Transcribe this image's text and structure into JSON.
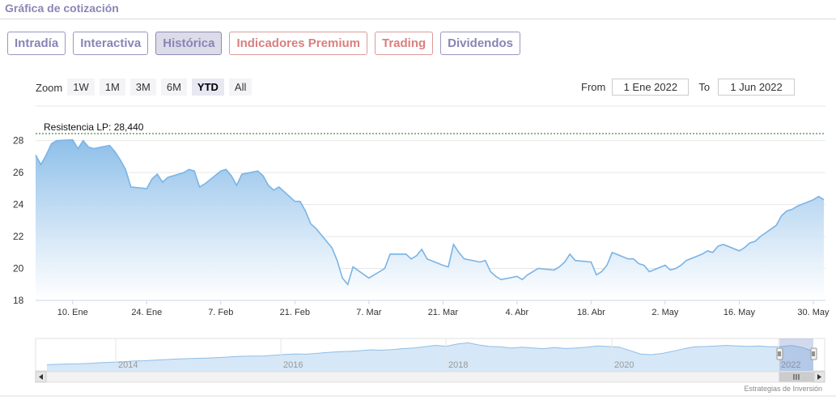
{
  "header": {
    "title": "Gráfica de cotización"
  },
  "tabs": [
    {
      "label": "Intradía",
      "state": "normal"
    },
    {
      "label": "Interactiva",
      "state": "normal"
    },
    {
      "label": "Histórica",
      "state": "active"
    },
    {
      "label": "Indicadores Premium",
      "state": "premium"
    },
    {
      "label": "Trading",
      "state": "premium"
    },
    {
      "label": "Dividendos",
      "state": "normal"
    }
  ],
  "zoom": {
    "label": "Zoom",
    "buttons": [
      "1W",
      "1M",
      "3M",
      "6M",
      "YTD",
      "All"
    ],
    "selected": "YTD"
  },
  "range": {
    "from_label": "From",
    "from_value": "1 Ene 2022",
    "to_label": "To",
    "to_value": "1 Jun 2022"
  },
  "credit": "Estrategias de Inversión",
  "colors": {
    "accent": "#8a86b4",
    "premium": "#d97f7f",
    "series_line": "#7ab4e6",
    "area_top": "#8ebfe9",
    "resistance": "#1a6b1a"
  },
  "chart_data": {
    "type": "area",
    "x_tick_labels": [
      "10. Ene",
      "24. Ene",
      "7. Feb",
      "21. Feb",
      "7. Mar",
      "21. Mar",
      "4. Abr",
      "18. Abr",
      "2. May",
      "16. May",
      "30. May"
    ],
    "y_tick_labels": [
      "18",
      "20",
      "22",
      "24",
      "26",
      "28"
    ],
    "ylim": [
      18,
      29.2
    ],
    "grid": true,
    "resistance": {
      "label": "Resistencia LP: 28,440",
      "value": 28.44
    },
    "series": [
      {
        "x": [
          "2022-01-03",
          "2022-01-04",
          "2022-01-05",
          "2022-01-06",
          "2022-01-07",
          "2022-01-10",
          "2022-01-11",
          "2022-01-12",
          "2022-01-13",
          "2022-01-14",
          "2022-01-17",
          "2022-01-18",
          "2022-01-19",
          "2022-01-20",
          "2022-01-21",
          "2022-01-24",
          "2022-01-25",
          "2022-01-26",
          "2022-01-27",
          "2022-01-28",
          "2022-01-31",
          "2022-02-01",
          "2022-02-02",
          "2022-02-03",
          "2022-02-04",
          "2022-02-07",
          "2022-02-08",
          "2022-02-09",
          "2022-02-10",
          "2022-02-11",
          "2022-02-14",
          "2022-02-15",
          "2022-02-16",
          "2022-02-17",
          "2022-02-18",
          "2022-02-21",
          "2022-02-22",
          "2022-02-23",
          "2022-02-24",
          "2022-02-25",
          "2022-02-28",
          "2022-03-01",
          "2022-03-02",
          "2022-03-03",
          "2022-03-04",
          "2022-03-07",
          "2022-03-08",
          "2022-03-09",
          "2022-03-10",
          "2022-03-11",
          "2022-03-14",
          "2022-03-15",
          "2022-03-16",
          "2022-03-17",
          "2022-03-18",
          "2022-03-21",
          "2022-03-22",
          "2022-03-23",
          "2022-03-24",
          "2022-03-25",
          "2022-03-28",
          "2022-03-29",
          "2022-03-30",
          "2022-03-31",
          "2022-04-01",
          "2022-04-04",
          "2022-04-05",
          "2022-04-06",
          "2022-04-07",
          "2022-04-08",
          "2022-04-11",
          "2022-04-12",
          "2022-04-13",
          "2022-04-14",
          "2022-04-15",
          "2022-04-18",
          "2022-04-19",
          "2022-04-20",
          "2022-04-21",
          "2022-04-22",
          "2022-04-25",
          "2022-04-26",
          "2022-04-27",
          "2022-04-28",
          "2022-04-29",
          "2022-05-02",
          "2022-05-03",
          "2022-05-04",
          "2022-05-05",
          "2022-05-06",
          "2022-05-09",
          "2022-05-10",
          "2022-05-11",
          "2022-05-12",
          "2022-05-13",
          "2022-05-16",
          "2022-05-17",
          "2022-05-18",
          "2022-05-19",
          "2022-05-20",
          "2022-05-23",
          "2022-05-24",
          "2022-05-25",
          "2022-05-26",
          "2022-05-27",
          "2022-05-30",
          "2022-05-31",
          "2022-06-01"
        ],
        "y": [
          27.1,
          26.5,
          27.1,
          27.8,
          28.0,
          28.05,
          27.5,
          28.0,
          27.6,
          27.5,
          27.7,
          27.3,
          26.8,
          26.2,
          25.1,
          25.0,
          25.6,
          25.9,
          25.4,
          25.7,
          26.0,
          26.2,
          26.1,
          25.1,
          25.3,
          26.1,
          26.2,
          25.8,
          25.2,
          25.9,
          26.1,
          25.8,
          25.2,
          24.9,
          25.1,
          24.2,
          24.2,
          23.6,
          22.8,
          22.5,
          21.3,
          20.5,
          19.4,
          19.0,
          20.1,
          19.4,
          19.6,
          19.8,
          20.0,
          20.9,
          20.9,
          20.6,
          20.8,
          21.2,
          20.6,
          20.2,
          20.1,
          21.5,
          21.0,
          20.6,
          20.4,
          20.5,
          19.8,
          19.5,
          19.3,
          19.5,
          19.3,
          19.6,
          19.8,
          20.0,
          19.9,
          20.1,
          20.4,
          20.9,
          20.5,
          20.4,
          19.6,
          19.8,
          20.2,
          21.0,
          20.6,
          20.6,
          20.3,
          20.2,
          19.8,
          20.2,
          19.9,
          20.0,
          20.2,
          20.5,
          20.9,
          21.1,
          21.0,
          21.4,
          21.5,
          21.1,
          21.3,
          21.6,
          21.7,
          22.0,
          22.7,
          23.3,
          23.6,
          23.7,
          23.9,
          24.3,
          24.5,
          24.3
        ]
      }
    ],
    "navigator": {
      "tick_labels": [
        "2014",
        "2016",
        "2018",
        "2020",
        "2022"
      ],
      "values": [
        15,
        15.4,
        15.8,
        16,
        16.5,
        17.2,
        17.6,
        18.2,
        19,
        19.3,
        20,
        20.6,
        21.2,
        21.6,
        22,
        22.4,
        22.9,
        23.5,
        24.2,
        24.4,
        24.6,
        25.3,
        26.2,
        26.8,
        26.5,
        27.4,
        28.5,
        29.2,
        29.6,
        30.4,
        31.3,
        30.9,
        31.6,
        32.7,
        33.4,
        34.8,
        36.2,
        35.2,
        37.6,
        39,
        36.7,
        35,
        34.7,
        33.2,
        34.3,
        33.3,
        32.6,
        33.9,
        32.8,
        33.4,
        34.3,
        35.6,
        35,
        34.3,
        30.6,
        26.7,
        26,
        27.3,
        29.7,
        32.5,
        34.7,
        35,
        35.6,
        36.1,
        35.5,
        35.1,
        35.6,
        34.7,
        34.9,
        36,
        33.8,
        29.5
      ]
    }
  }
}
